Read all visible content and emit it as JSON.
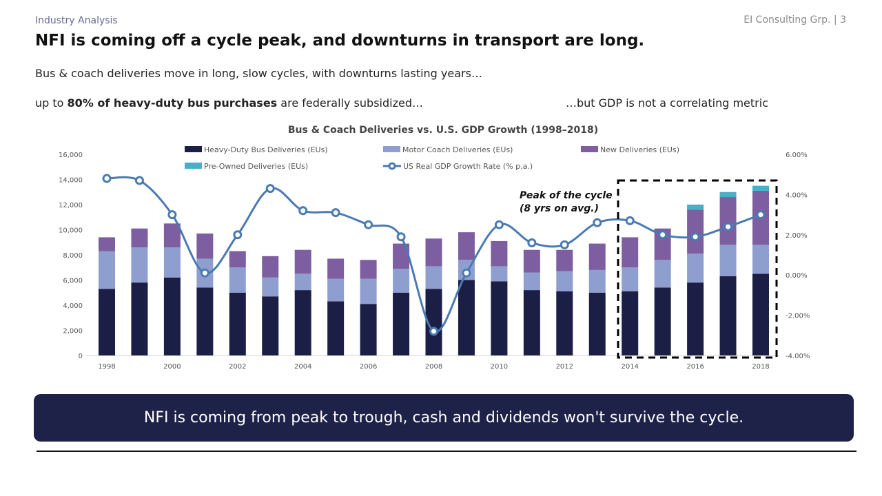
{
  "header": {
    "section": "Industry Analysis",
    "brand": "EI Consulting Grp. | 3",
    "title": "NFI is coming off a cycle peak, and downturns in transport are long.",
    "subtitle1": "Bus & coach deliveries move in long, slow cycles, with downturns lasting years…",
    "subtitle2_prefix": "up to ",
    "subtitle2_bold": "80% of heavy-duty bus purchases",
    "subtitle2_suffix": " are federally subsidized…",
    "subtitle3": "…but GDP is not a correlating metric"
  },
  "banner": "NFI is coming from peak to trough, cash and dividends won't survive the cycle.",
  "chart_data": {
    "type": "bar",
    "stacked": true,
    "title": "Bus & Coach Deliveries vs. U.S. GDP Growth (1998–2018)",
    "categories": [
      "1998",
      "1999",
      "2000",
      "2001",
      "2002",
      "2003",
      "2004",
      "2005",
      "2006",
      "2007",
      "2008",
      "2009",
      "2010",
      "2011",
      "2012",
      "2013",
      "2014",
      "2015",
      "2016",
      "2017",
      "2018"
    ],
    "x_tick_labels": [
      "1998",
      "2000",
      "2002",
      "2004",
      "2006",
      "2008",
      "2010",
      "2012",
      "2014",
      "2016",
      "2018"
    ],
    "ylim": [
      0,
      16000
    ],
    "y_ticks": [
      "0",
      "2,000",
      "4,000",
      "6,000",
      "8,000",
      "10,000",
      "12,000",
      "14,000",
      "16,000"
    ],
    "y2lim": [
      -4,
      6
    ],
    "y2_ticks": [
      "-4.00%",
      "-2.00%",
      "0.00%",
      "2.00%",
      "4.00%",
      "6.00%"
    ],
    "grid": false,
    "legend_position": "top",
    "series": [
      {
        "name": "Heavy-Duty Bus Deliveries (EUs)",
        "color": "#1c1f45",
        "values": [
          5300,
          5800,
          6200,
          5400,
          5000,
          4700,
          5200,
          4300,
          4100,
          5000,
          5300,
          6000,
          5900,
          5200,
          5100,
          5000,
          5100,
          5400,
          5800,
          6300,
          6500
        ]
      },
      {
        "name": "Motor Coach Deliveries (EUs)",
        "color": "#8e9fcf",
        "values": [
          3000,
          2800,
          2400,
          2300,
          2000,
          1500,
          1300,
          1800,
          2000,
          1900,
          1800,
          1600,
          1200,
          1400,
          1600,
          1800,
          1900,
          2200,
          2300,
          2500,
          2300
        ]
      },
      {
        "name": "New Deliveries (EUs)",
        "color": "#7d5ea0",
        "values": [
          1100,
          1500,
          1900,
          2000,
          1300,
          1700,
          1900,
          1600,
          1500,
          2000,
          2200,
          2200,
          2000,
          1800,
          1700,
          2100,
          2400,
          2500,
          3500,
          3800,
          4300
        ]
      },
      {
        "name": "Pre-Owned Deliveries (EUs)",
        "color": "#4aaec6",
        "values": [
          0,
          0,
          0,
          0,
          0,
          0,
          0,
          0,
          0,
          0,
          0,
          0,
          0,
          0,
          0,
          0,
          0,
          0,
          400,
          400,
          400
        ]
      }
    ],
    "line_series": {
      "name": "US Real GDP Growth Rate (% p.a.)",
      "axis": "right",
      "color": "#4a7ab0",
      "values": [
        4.8,
        4.7,
        3.0,
        0.1,
        2.0,
        4.3,
        3.2,
        3.1,
        2.5,
        1.9,
        -2.8,
        0.1,
        2.5,
        1.6,
        1.5,
        2.6,
        2.7,
        2.0,
        1.9,
        2.4,
        3.0
      ]
    },
    "annotation": {
      "line1": "Peak of the cycle",
      "line2": "(8 yrs on avg.)",
      "highlight": [
        "2014",
        "2018"
      ]
    }
  }
}
